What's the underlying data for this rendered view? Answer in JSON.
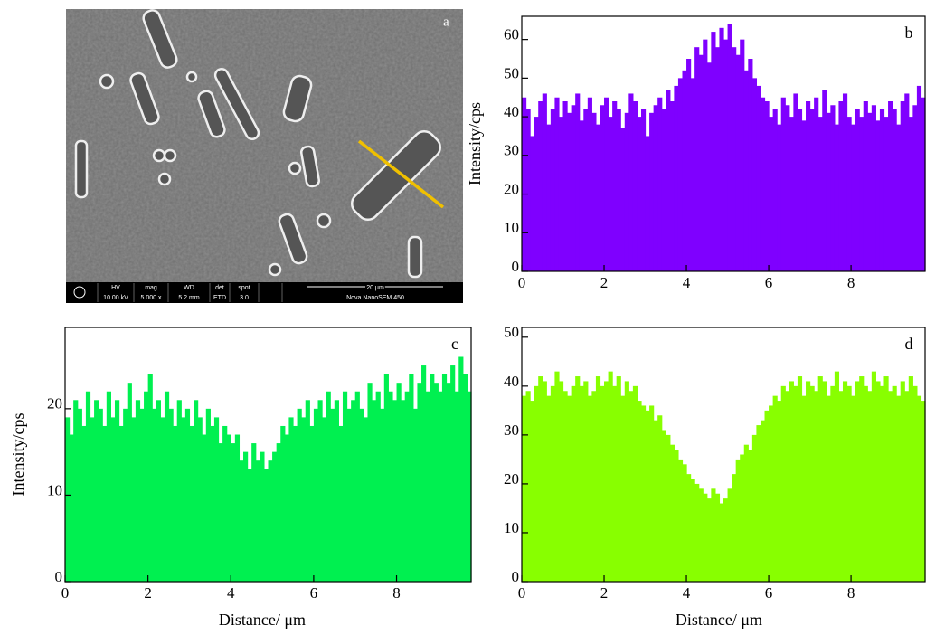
{
  "sem_image": {
    "label": "a",
    "info_bar": [
      "HV",
      "10.00 kV",
      "mag",
      "5 000 x",
      "WD",
      "5.2 mm",
      "det",
      "ETD",
      "spot",
      "3.0",
      "20 μm",
      "Nova NanoSEM 450"
    ]
  },
  "chart_data": [
    {
      "type": "histogram",
      "panel_label": "b",
      "y_label": "Intensity/cps",
      "color": "#7f00ff",
      "bins": [
        0,
        0.1,
        0.2,
        0.3,
        0.4,
        0.5,
        0.6,
        0.7,
        0.8,
        0.9,
        1,
        1.1,
        1.2,
        1.3,
        1.4,
        1.5,
        1.6,
        1.7,
        1.8,
        1.9,
        2,
        2.1,
        2.2,
        2.3,
        2.4,
        2.5,
        2.6,
        2.7,
        2.8,
        2.9,
        3,
        3.1,
        3.2,
        3.3,
        3.4,
        3.5,
        3.6,
        3.7,
        3.8,
        3.9,
        4,
        4.1,
        4.2,
        4.3,
        4.4,
        4.5,
        4.6,
        4.7,
        4.8,
        4.9,
        5,
        5.1,
        5.2,
        5.3,
        5.4,
        5.5,
        5.6,
        5.7,
        5.8,
        5.9,
        6,
        6.1,
        6.2,
        6.3,
        6.4,
        6.5,
        6.6,
        6.7,
        6.8,
        6.9,
        7,
        7.1,
        7.2,
        7.3,
        7.4,
        7.5,
        7.6,
        7.7,
        7.8,
        7.9,
        8,
        8.1,
        8.2,
        8.3,
        8.4,
        8.5,
        8.6,
        8.7,
        8.8,
        8.9,
        9,
        9.1,
        9.2,
        9.3,
        9.4,
        9.5,
        9.6,
        9.7,
        9.8
      ],
      "values": [
        45,
        42,
        35,
        40,
        44,
        46,
        38,
        42,
        45,
        40,
        44,
        41,
        43,
        46,
        39,
        42,
        45,
        41,
        38,
        43,
        45,
        40,
        44,
        42,
        37,
        41,
        46,
        44,
        40,
        42,
        35,
        41,
        43,
        45,
        42,
        47,
        44,
        48,
        50,
        52,
        55,
        50,
        58,
        56,
        60,
        54,
        62,
        58,
        63,
        60,
        64,
        58,
        56,
        60,
        52,
        55,
        50,
        48,
        45,
        44,
        40,
        42,
        38,
        45,
        43,
        40,
        46,
        42,
        39,
        44,
        42,
        45,
        40,
        47,
        41,
        43,
        38,
        44,
        46,
        40,
        38,
        42,
        40,
        44,
        41,
        43,
        39,
        42,
        40,
        44,
        42,
        38,
        44,
        46,
        40,
        43,
        48,
        45
      ],
      "xlim": [
        0,
        9.8
      ],
      "ylim": [
        0,
        66
      ],
      "xticks": [
        0,
        2,
        4,
        6,
        8
      ],
      "yticks": [
        0,
        10,
        20,
        30,
        40,
        50,
        60
      ]
    },
    {
      "type": "histogram",
      "panel_label": "c",
      "y_label": "Intensity/cps",
      "x_label": "Distance/ μm",
      "color": "#00f050",
      "bins": [
        0,
        0.1,
        0.2,
        0.3,
        0.4,
        0.5,
        0.6,
        0.7,
        0.8,
        0.9,
        1,
        1.1,
        1.2,
        1.3,
        1.4,
        1.5,
        1.6,
        1.7,
        1.8,
        1.9,
        2,
        2.1,
        2.2,
        2.3,
        2.4,
        2.5,
        2.6,
        2.7,
        2.8,
        2.9,
        3,
        3.1,
        3.2,
        3.3,
        3.4,
        3.5,
        3.6,
        3.7,
        3.8,
        3.9,
        4,
        4.1,
        4.2,
        4.3,
        4.4,
        4.5,
        4.6,
        4.7,
        4.8,
        4.9,
        5,
        5.1,
        5.2,
        5.3,
        5.4,
        5.5,
        5.6,
        5.7,
        5.8,
        5.9,
        6,
        6.1,
        6.2,
        6.3,
        6.4,
        6.5,
        6.6,
        6.7,
        6.8,
        6.9,
        7,
        7.1,
        7.2,
        7.3,
        7.4,
        7.5,
        7.6,
        7.7,
        7.8,
        7.9,
        8,
        8.1,
        8.2,
        8.3,
        8.4,
        8.5,
        8.6,
        8.7,
        8.8,
        8.9,
        9,
        9.1,
        9.2,
        9.3,
        9.4,
        9.5,
        9.6,
        9.7,
        9.8
      ],
      "values": [
        19,
        17,
        21,
        20,
        18,
        22,
        19,
        21,
        20,
        18,
        22,
        19,
        21,
        18,
        20,
        23,
        19,
        21,
        20,
        22,
        24,
        20,
        21,
        19,
        22,
        20,
        18,
        21,
        19,
        20,
        18,
        21,
        19,
        17,
        20,
        18,
        19,
        16,
        18,
        17,
        16,
        17,
        14,
        15,
        13,
        16,
        14,
        15,
        13,
        14,
        15,
        16,
        18,
        17,
        19,
        18,
        20,
        19,
        21,
        18,
        20,
        21,
        19,
        22,
        20,
        21,
        18,
        22,
        20,
        21,
        22,
        20,
        19,
        23,
        21,
        22,
        20,
        24,
        22,
        21,
        23,
        21,
        22,
        24,
        20,
        23,
        25,
        22,
        24,
        23,
        22,
        24,
        23,
        25,
        22,
        26,
        24,
        22
      ],
      "xlim": [
        0,
        9.8
      ],
      "ylim": [
        0,
        29.4
      ],
      "xticks": [
        0,
        2,
        4,
        6,
        8
      ],
      "yticks": [
        0,
        10,
        20
      ]
    },
    {
      "type": "histogram",
      "panel_label": "d",
      "x_label": "Distance/ μm",
      "color": "#88ff00",
      "bins": [
        0,
        0.1,
        0.2,
        0.3,
        0.4,
        0.5,
        0.6,
        0.7,
        0.8,
        0.9,
        1,
        1.1,
        1.2,
        1.3,
        1.4,
        1.5,
        1.6,
        1.7,
        1.8,
        1.9,
        2,
        2.1,
        2.2,
        2.3,
        2.4,
        2.5,
        2.6,
        2.7,
        2.8,
        2.9,
        3,
        3.1,
        3.2,
        3.3,
        3.4,
        3.5,
        3.6,
        3.7,
        3.8,
        3.9,
        4,
        4.1,
        4.2,
        4.3,
        4.4,
        4.5,
        4.6,
        4.7,
        4.8,
        4.9,
        5,
        5.1,
        5.2,
        5.3,
        5.4,
        5.5,
        5.6,
        5.7,
        5.8,
        5.9,
        6,
        6.1,
        6.2,
        6.3,
        6.4,
        6.5,
        6.6,
        6.7,
        6.8,
        6.9,
        7,
        7.1,
        7.2,
        7.3,
        7.4,
        7.5,
        7.6,
        7.7,
        7.8,
        7.9,
        8,
        8.1,
        8.2,
        8.3,
        8.4,
        8.5,
        8.6,
        8.7,
        8.8,
        8.9,
        9,
        9.1,
        9.2,
        9.3,
        9.4,
        9.5,
        9.6,
        9.7,
        9.8
      ],
      "values": [
        38,
        39,
        37,
        40,
        42,
        41,
        38,
        40,
        43,
        41,
        39,
        38,
        40,
        42,
        40,
        41,
        38,
        39,
        42,
        40,
        41,
        43,
        40,
        42,
        38,
        41,
        39,
        40,
        37,
        36,
        35,
        36,
        33,
        34,
        31,
        30,
        28,
        27,
        25,
        24,
        22,
        21,
        20,
        19,
        18,
        17,
        19,
        18,
        16,
        17,
        19,
        22,
        25,
        26,
        28,
        27,
        30,
        32,
        33,
        35,
        36,
        38,
        37,
        40,
        39,
        41,
        40,
        42,
        38,
        41,
        40,
        39,
        42,
        41,
        38,
        40,
        43,
        39,
        41,
        40,
        38,
        41,
        42,
        40,
        39,
        43,
        41,
        40,
        42,
        39,
        40,
        38,
        41,
        39,
        42,
        40,
        38,
        37
      ],
      "xlim": [
        0,
        9.8
      ],
      "ylim": [
        0,
        52
      ],
      "xticks": [
        0,
        2,
        4,
        6,
        8
      ],
      "yticks": [
        0,
        10,
        20,
        30,
        40,
        50
      ]
    }
  ]
}
